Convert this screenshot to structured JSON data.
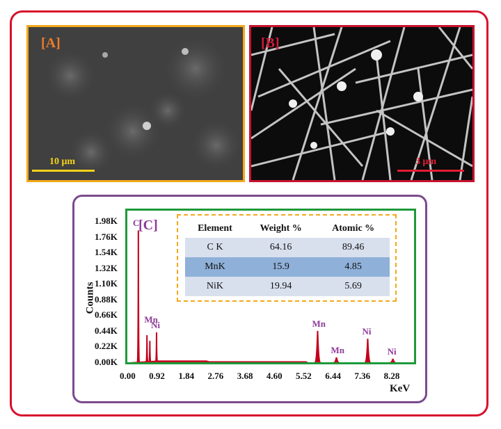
{
  "panels": {
    "a": {
      "label": "[A]",
      "scale": "10 μm"
    },
    "b": {
      "label": "[B]",
      "scale": "3 μm"
    },
    "c": {
      "label": "[C]"
    }
  },
  "colors": {
    "outer_frame": "#d8102c",
    "panel_a_border": "#f3a81b",
    "panel_b_border": "#c8122e",
    "panel_c_border": "#7b4a8f",
    "spectrum_border": "#1e9a3a",
    "peak_fill": "#c3001b",
    "peak_label": "#8e3a99"
  },
  "table": {
    "headers": [
      "Element",
      "Weight %",
      "Atomic %"
    ],
    "rows": [
      [
        "C K",
        "64.16",
        "89.46"
      ],
      [
        "MnK",
        "15.9",
        "4.85"
      ],
      [
        "NiK",
        "19.94",
        "5.69"
      ]
    ]
  },
  "chart_data": {
    "type": "area",
    "title": "",
    "xlabel": "KeV",
    "ylabel": "Counts",
    "xlim": [
      0,
      8.9
    ],
    "ylim": [
      0,
      1.98
    ],
    "x_ticks": [
      "0.00",
      "0.92",
      "1.84",
      "2.76",
      "3.68",
      "4.60",
      "5.52",
      "6.44",
      "7.36",
      "8.28"
    ],
    "y_ticks": [
      "0.00K",
      "0.22K",
      "0.44K",
      "0.66K",
      "0.88K",
      "1.10K",
      "1.32K",
      "1.54K",
      "1.76K",
      "1.98K"
    ],
    "peaks": [
      {
        "element": "C",
        "energy": 0.28,
        "counts_k": 1.85
      },
      {
        "element": "",
        "energy": 0.55,
        "counts_k": 0.38
      },
      {
        "element": "Mn",
        "energy": 0.64,
        "counts_k": 0.3
      },
      {
        "element": "Ni",
        "energy": 0.85,
        "counts_k": 0.42
      },
      {
        "element": "Mn",
        "energy": 5.9,
        "counts_k": 0.44
      },
      {
        "element": "Mn",
        "energy": 6.49,
        "counts_k": 0.07
      },
      {
        "element": "Ni",
        "energy": 7.47,
        "counts_k": 0.33
      },
      {
        "element": "Ni",
        "energy": 8.26,
        "counts_k": 0.05
      }
    ],
    "peak_labels": [
      {
        "text": "C",
        "energy": 0.28,
        "counts_k": 1.85
      },
      {
        "text": "Mn",
        "energy": 0.64,
        "counts_k": 0.5
      },
      {
        "text": "Ni",
        "energy": 0.85,
        "counts_k": 0.42
      },
      {
        "text": "Mn",
        "energy": 5.9,
        "counts_k": 0.44
      },
      {
        "text": "Mn",
        "energy": 6.49,
        "counts_k": 0.07
      },
      {
        "text": "Ni",
        "energy": 7.47,
        "counts_k": 0.33
      },
      {
        "text": "Ni",
        "energy": 8.26,
        "counts_k": 0.05
      }
    ]
  }
}
